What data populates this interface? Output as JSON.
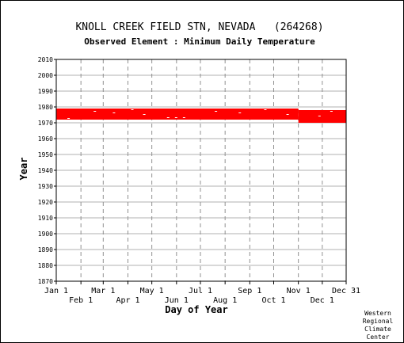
{
  "chart_data": {
    "type": "scatter",
    "title": "KNOLL CREEK FIELD STN, NEVADA   (264268)",
    "subtitle": "Observed Element : Minimum Daily Temperature",
    "xlabel": "Day of Year",
    "ylabel": "Year",
    "ylim": [
      1870,
      2010
    ],
    "y_ticks": [
      2010,
      2000,
      1990,
      1980,
      1970,
      1960,
      1950,
      1940,
      1930,
      1920,
      1910,
      1900,
      1890,
      1880,
      1870
    ],
    "x_ticks_top_row": [
      {
        "label": "Jan 1",
        "day": 1
      },
      {
        "label": "Mar 1",
        "day": 60
      },
      {
        "label": "May 1",
        "day": 121
      },
      {
        "label": "Jul 1",
        "day": 182
      },
      {
        "label": "Sep 1",
        "day": 244
      },
      {
        "label": "Nov 1",
        "day": 305
      },
      {
        "label": "Dec 31",
        "day": 365
      }
    ],
    "x_ticks_bottom_row": [
      {
        "label": "Feb 1",
        "day": 32
      },
      {
        "label": "Apr 1",
        "day": 91
      },
      {
        "label": "Jun 1",
        "day": 152
      },
      {
        "label": "Aug 1",
        "day": 213
      },
      {
        "label": "Oct 1",
        "day": 274
      },
      {
        "label": "Dec 1",
        "day": 335
      }
    ],
    "xlim": [
      1,
      365
    ],
    "grid": true,
    "series": [
      {
        "color": "#ff0000",
        "coverage": [
          {
            "day_start": 1,
            "day_end": 304,
            "year_start": 1972,
            "year_end": 1979
          },
          {
            "day_start": 305,
            "day_end": 365,
            "year_start": 1970,
            "year_end": 1978
          }
        ],
        "gaps": [
          {
            "day": 15,
            "year": 1972.5
          },
          {
            "day": 48,
            "year": 1977
          },
          {
            "day": 72,
            "year": 1976
          },
          {
            "day": 95,
            "year": 1978
          },
          {
            "day": 110,
            "year": 1975
          },
          {
            "day": 140,
            "year": 1973
          },
          {
            "day": 150,
            "year": 1973
          },
          {
            "day": 160,
            "year": 1973
          },
          {
            "day": 200,
            "year": 1977
          },
          {
            "day": 230,
            "year": 1976
          },
          {
            "day": 262,
            "year": 1978
          },
          {
            "day": 290,
            "year": 1975
          },
          {
            "day": 330,
            "year": 1974
          },
          {
            "day": 345,
            "year": 1977
          }
        ]
      }
    ]
  },
  "credit": {
    "line1": "Western",
    "line2": "Regional",
    "line3": "Climate",
    "line4": "Center"
  }
}
